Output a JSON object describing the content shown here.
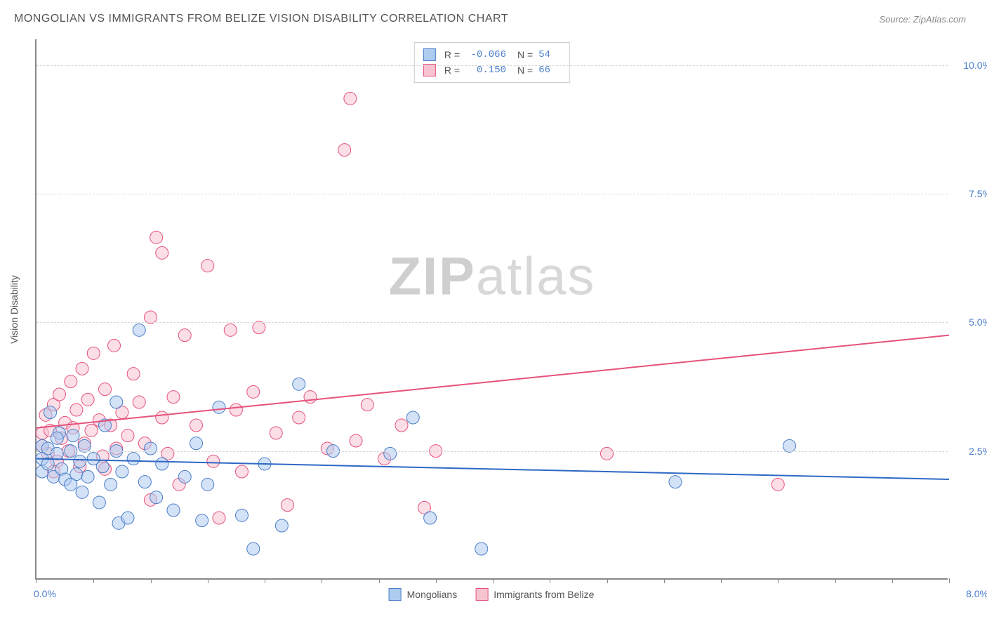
{
  "header": {
    "title": "MONGOLIAN VS IMMIGRANTS FROM BELIZE VISION DISABILITY CORRELATION CHART",
    "source_prefix": "Source: ",
    "source_name": "ZipAtlas.com"
  },
  "watermark": {
    "zip": "ZIP",
    "atlas": "atlas"
  },
  "chart": {
    "type": "scatter",
    "ylabel": "Vision Disability",
    "xlim": [
      0,
      8
    ],
    "ylim": [
      0,
      10.5
    ],
    "xlim_labels": {
      "min": "0.0%",
      "max": "8.0%"
    },
    "xtick_positions": [
      0.0,
      0.5,
      1.0,
      1.5,
      2.0,
      2.5,
      3.0,
      3.5,
      4.0,
      4.5,
      5.0,
      5.5,
      6.0,
      6.5,
      7.0,
      7.5,
      8.0
    ],
    "ytick_positions": [
      2.5,
      5.0,
      7.5,
      10.0
    ],
    "ytick_labels": [
      "2.5%",
      "5.0%",
      "7.5%",
      "10.0%"
    ],
    "grid_color": "#d8d8d8",
    "background": "#ffffff",
    "marker_radius": 9,
    "marker_opacity": 0.55,
    "line_width": 2,
    "series": [
      {
        "name": "Mongolians",
        "color_fill": "#aecbf0",
        "color_stroke": "#4a7ec9",
        "line_color": "#2d68c4",
        "R": "-0.066",
        "N": "54",
        "trend": {
          "x1": 0.0,
          "y1": 2.35,
          "x2": 8.0,
          "y2": 1.95
        },
        "points": [
          [
            0.05,
            2.6
          ],
          [
            0.05,
            2.35
          ],
          [
            0.05,
            2.1
          ],
          [
            0.1,
            2.55
          ],
          [
            0.1,
            2.25
          ],
          [
            0.12,
            3.25
          ],
          [
            0.15,
            2.0
          ],
          [
            0.18,
            2.45
          ],
          [
            0.2,
            2.85
          ],
          [
            0.22,
            2.15
          ],
          [
            0.25,
            1.95
          ],
          [
            0.3,
            2.5
          ],
          [
            0.32,
            2.8
          ],
          [
            0.35,
            2.05
          ],
          [
            0.38,
            2.3
          ],
          [
            0.4,
            1.7
          ],
          [
            0.42,
            2.6
          ],
          [
            0.45,
            2.0
          ],
          [
            0.5,
            2.35
          ],
          [
            0.55,
            1.5
          ],
          [
            0.58,
            2.2
          ],
          [
            0.6,
            3.0
          ],
          [
            0.65,
            1.85
          ],
          [
            0.7,
            2.5
          ],
          [
            0.7,
            3.45
          ],
          [
            0.72,
            1.1
          ],
          [
            0.75,
            2.1
          ],
          [
            0.8,
            1.2
          ],
          [
            0.85,
            2.35
          ],
          [
            0.9,
            4.85
          ],
          [
            0.95,
            1.9
          ],
          [
            1.0,
            2.55
          ],
          [
            1.05,
            1.6
          ],
          [
            1.1,
            2.25
          ],
          [
            1.2,
            1.35
          ],
          [
            1.3,
            2.0
          ],
          [
            1.4,
            2.65
          ],
          [
            1.45,
            1.15
          ],
          [
            1.5,
            1.85
          ],
          [
            1.6,
            3.35
          ],
          [
            1.8,
            1.25
          ],
          [
            1.9,
            0.6
          ],
          [
            2.0,
            2.25
          ],
          [
            2.15,
            1.05
          ],
          [
            2.3,
            3.8
          ],
          [
            2.6,
            2.5
          ],
          [
            3.1,
            2.45
          ],
          [
            3.3,
            3.15
          ],
          [
            3.45,
            1.2
          ],
          [
            3.9,
            0.6
          ],
          [
            5.6,
            1.9
          ],
          [
            6.6,
            2.6
          ],
          [
            0.3,
            1.85
          ],
          [
            0.18,
            2.75
          ]
        ]
      },
      {
        "name": "Immigrants from Belize",
        "color_fill": "#f7c3d1",
        "color_stroke": "#e5527a",
        "line_color": "#e5527a",
        "R": "0.150",
        "N": "66",
        "trend": {
          "x1": 0.0,
          "y1": 2.95,
          "x2": 8.0,
          "y2": 4.75
        },
        "points": [
          [
            0.05,
            2.6
          ],
          [
            0.05,
            2.85
          ],
          [
            0.08,
            3.2
          ],
          [
            0.1,
            2.45
          ],
          [
            0.12,
            2.9
          ],
          [
            0.15,
            3.4
          ],
          [
            0.18,
            2.3
          ],
          [
            0.2,
            3.6
          ],
          [
            0.22,
            2.75
          ],
          [
            0.25,
            3.05
          ],
          [
            0.28,
            2.5
          ],
          [
            0.3,
            3.85
          ],
          [
            0.32,
            2.95
          ],
          [
            0.35,
            3.3
          ],
          [
            0.38,
            2.2
          ],
          [
            0.4,
            4.1
          ],
          [
            0.42,
            2.65
          ],
          [
            0.45,
            3.5
          ],
          [
            0.48,
            2.9
          ],
          [
            0.5,
            4.4
          ],
          [
            0.55,
            3.1
          ],
          [
            0.58,
            2.4
          ],
          [
            0.6,
            3.7
          ],
          [
            0.65,
            3.0
          ],
          [
            0.68,
            4.55
          ],
          [
            0.7,
            2.55
          ],
          [
            0.75,
            3.25
          ],
          [
            0.8,
            2.8
          ],
          [
            0.85,
            4.0
          ],
          [
            0.9,
            3.45
          ],
          [
            0.95,
            2.65
          ],
          [
            1.0,
            5.1
          ],
          [
            1.05,
            6.65
          ],
          [
            1.1,
            3.15
          ],
          [
            1.1,
            6.35
          ],
          [
            1.15,
            2.45
          ],
          [
            1.2,
            3.55
          ],
          [
            1.25,
            1.85
          ],
          [
            1.3,
            4.75
          ],
          [
            1.4,
            3.0
          ],
          [
            1.5,
            6.1
          ],
          [
            1.55,
            2.3
          ],
          [
            1.6,
            1.2
          ],
          [
            1.7,
            4.85
          ],
          [
            1.75,
            3.3
          ],
          [
            1.8,
            2.1
          ],
          [
            1.9,
            3.65
          ],
          [
            1.95,
            4.9
          ],
          [
            2.1,
            2.85
          ],
          [
            2.2,
            1.45
          ],
          [
            2.3,
            3.15
          ],
          [
            2.4,
            3.55
          ],
          [
            2.55,
            2.55
          ],
          [
            2.7,
            8.35
          ],
          [
            2.75,
            9.35
          ],
          [
            2.8,
            2.7
          ],
          [
            2.9,
            3.4
          ],
          [
            3.05,
            2.35
          ],
          [
            3.2,
            3.0
          ],
          [
            3.4,
            1.4
          ],
          [
            3.5,
            2.5
          ],
          [
            5.0,
            2.45
          ],
          [
            6.5,
            1.85
          ],
          [
            0.15,
            2.1
          ],
          [
            0.6,
            2.15
          ],
          [
            1.0,
            1.55
          ]
        ]
      }
    ]
  },
  "legend_bottom": [
    {
      "label": "Mongolians",
      "fill": "#aecbf0",
      "stroke": "#4a7ec9"
    },
    {
      "label": "Immigrants from Belize",
      "fill": "#f7c3d1",
      "stroke": "#e5527a"
    }
  ]
}
